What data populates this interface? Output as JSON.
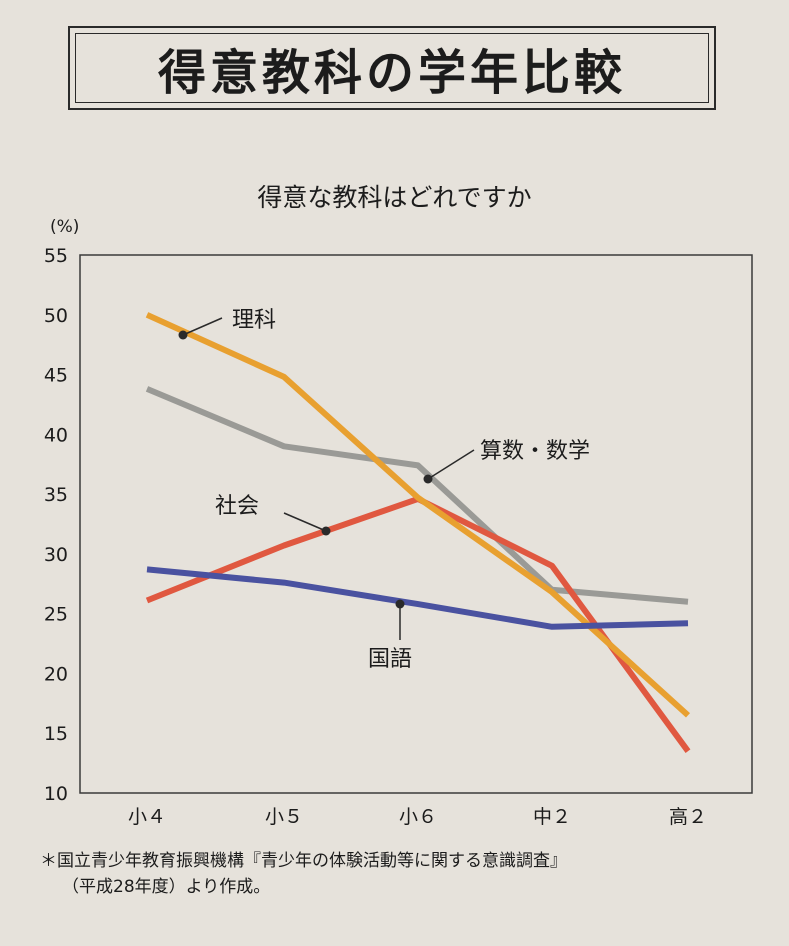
{
  "header": {
    "title": "得意教科の学年比較"
  },
  "chart_data": {
    "type": "line",
    "title": "得意な教科はどれですか",
    "ylabel": "(%)",
    "xlabel": "",
    "categories": [
      "小４",
      "小５",
      "小６",
      "中２",
      "高２"
    ],
    "ylim": [
      10,
      55
    ],
    "yticks": [
      10,
      15,
      20,
      25,
      30,
      35,
      40,
      45,
      50,
      55
    ],
    "grid": false,
    "series": [
      {
        "name": "理科",
        "color": "#e8a030",
        "values": [
          50,
          44.8,
          34.7,
          26.8,
          16.5
        ]
      },
      {
        "name": "算数・数学",
        "color": "#9a9a96",
        "values": [
          43.8,
          39,
          37.4,
          27,
          26
        ]
      },
      {
        "name": "社会",
        "color": "#e05840",
        "values": [
          26.1,
          30.7,
          34.6,
          29,
          13.5
        ]
      },
      {
        "name": "国語",
        "color": "#4a52a0",
        "values": [
          28.7,
          27.6,
          25.8,
          23.9,
          24.2
        ]
      }
    ]
  },
  "footnote": {
    "line1": "＊国立青少年教育振興機構『青少年の体験活動等に関する意識調査』",
    "line2": "（平成28年度）より作成。"
  }
}
